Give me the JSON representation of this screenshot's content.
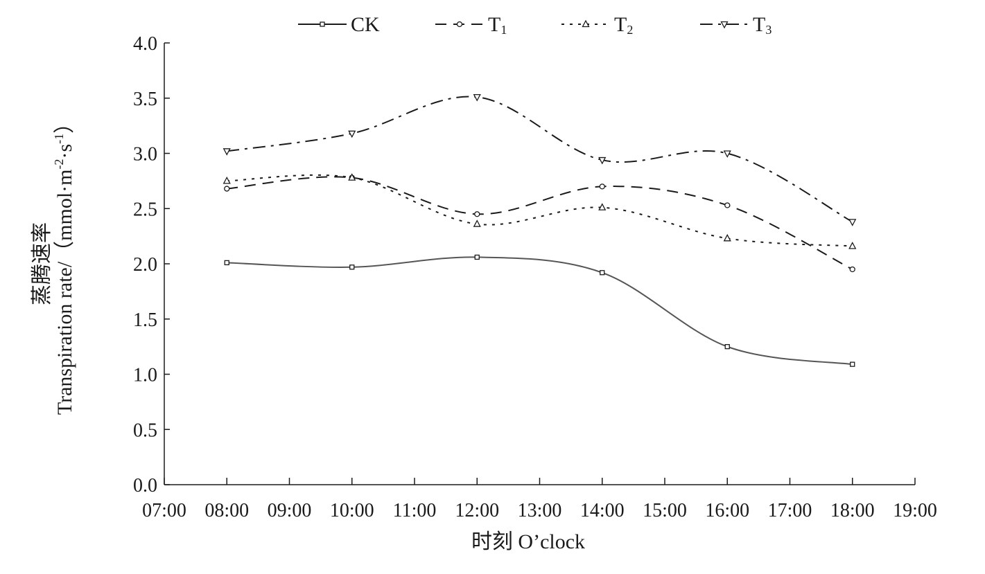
{
  "chart_data": {
    "type": "line",
    "xlabel": "时刻 O’clock",
    "ylabel_cn": "蒸腾速率",
    "ylabel_en": "Transpiration rate/（mmol·m",
    "ylabel_sup1": "-2",
    "ylabel_mid": "·s",
    "ylabel_sup2": "-1",
    "ylabel_end": "）",
    "x_ticks": [
      "07:00",
      "08:00",
      "09:00",
      "10:00",
      "11:00",
      "12:00",
      "13:00",
      "14:00",
      "15:00",
      "16:00",
      "17:00",
      "18:00",
      "19:00"
    ],
    "xlim": [
      7,
      19
    ],
    "ylim": [
      0,
      4.0
    ],
    "y_ticks": [
      "0.0",
      "0.5",
      "1.0",
      "1.5",
      "2.0",
      "2.5",
      "3.0",
      "3.5",
      "4.0"
    ],
    "x": [
      8,
      10,
      12,
      14,
      16,
      18
    ],
    "legend_placement": "top",
    "grid": false,
    "series": [
      {
        "name": "CK",
        "sub": "",
        "marker": "square",
        "dash": "solid",
        "values": [
          2.01,
          1.97,
          2.06,
          1.92,
          1.25,
          1.09
        ]
      },
      {
        "name": "T",
        "sub": "1",
        "marker": "circle",
        "dash": "dashed",
        "values": [
          2.68,
          2.78,
          2.45,
          2.7,
          2.53,
          1.95
        ]
      },
      {
        "name": "T",
        "sub": "2",
        "marker": "triangle-up",
        "dash": "dotted",
        "values": [
          2.75,
          2.78,
          2.36,
          2.51,
          2.23,
          2.16
        ]
      },
      {
        "name": "T",
        "sub": "3",
        "marker": "triangle-down",
        "dash": "dash-dot",
        "values": [
          3.02,
          3.18,
          3.51,
          2.94,
          3.0,
          2.38
        ]
      }
    ],
    "colors": {
      "line": "#1a1a1a",
      "ck_line": "#555555"
    }
  }
}
